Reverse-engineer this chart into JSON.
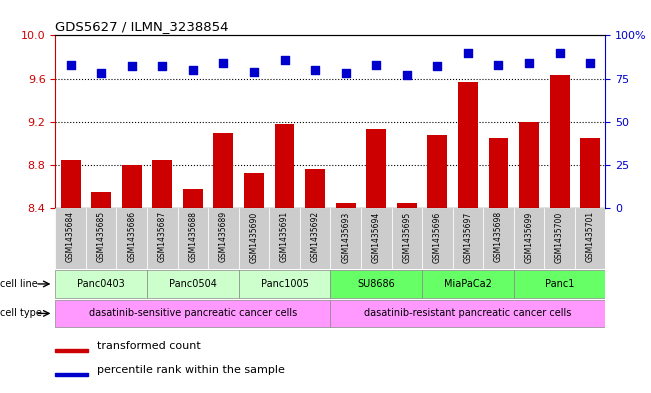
{
  "title": "GDS5627 / ILMN_3238854",
  "samples": [
    "GSM1435684",
    "GSM1435685",
    "GSM1435686",
    "GSM1435687",
    "GSM1435688",
    "GSM1435689",
    "GSM1435690",
    "GSM1435691",
    "GSM1435692",
    "GSM1435693",
    "GSM1435694",
    "GSM1435695",
    "GSM1435696",
    "GSM1435697",
    "GSM1435698",
    "GSM1435699",
    "GSM1435700",
    "GSM1435701"
  ],
  "transformed_count": [
    8.85,
    8.55,
    8.8,
    8.85,
    8.58,
    9.1,
    8.73,
    9.18,
    8.76,
    8.45,
    9.13,
    8.45,
    9.08,
    9.57,
    9.05,
    9.2,
    9.63,
    9.05
  ],
  "percentile_rank": [
    83,
    78,
    82,
    82,
    80,
    84,
    79,
    86,
    80,
    78,
    83,
    77,
    82,
    90,
    83,
    84,
    90,
    84
  ],
  "ylim_left": [
    8.4,
    10.0
  ],
  "ylim_right": [
    0,
    100
  ],
  "yticks_left": [
    8.4,
    8.8,
    9.2,
    9.6,
    10.0
  ],
  "yticks_right": [
    0,
    25,
    50,
    75,
    100
  ],
  "bar_color": "#cc0000",
  "dot_color": "#0000cc",
  "cell_line_groups": [
    {
      "label": "Panc0403",
      "start": 0,
      "end": 2,
      "color": "#ccffcc"
    },
    {
      "label": "Panc0504",
      "start": 3,
      "end": 5,
      "color": "#ccffcc"
    },
    {
      "label": "Panc1005",
      "start": 6,
      "end": 8,
      "color": "#ccffcc"
    },
    {
      "label": "SU8686",
      "start": 9,
      "end": 11,
      "color": "#66ff66"
    },
    {
      "label": "MiaPaCa2",
      "start": 12,
      "end": 14,
      "color": "#66ff66"
    },
    {
      "label": "Panc1",
      "start": 15,
      "end": 17,
      "color": "#66ff66"
    }
  ],
  "cell_type_groups": [
    {
      "label": "dasatinib-sensitive pancreatic cancer cells",
      "start": 0,
      "end": 8,
      "color": "#ff99ff"
    },
    {
      "label": "dasatinib-resistant pancreatic cancer cells",
      "start": 9,
      "end": 17,
      "color": "#ff99ff"
    }
  ],
  "legend_bar_label": "transformed count",
  "legend_dot_label": "percentile rank within the sample",
  "left_axis_color": "#cc0000",
  "right_axis_color": "#0000cc",
  "grid_dotted_values": [
    8.8,
    9.2,
    9.6
  ],
  "dot_size": 40,
  "bar_width": 0.65,
  "sample_bg_color": "#cccccc",
  "label_text_color": "#333333"
}
